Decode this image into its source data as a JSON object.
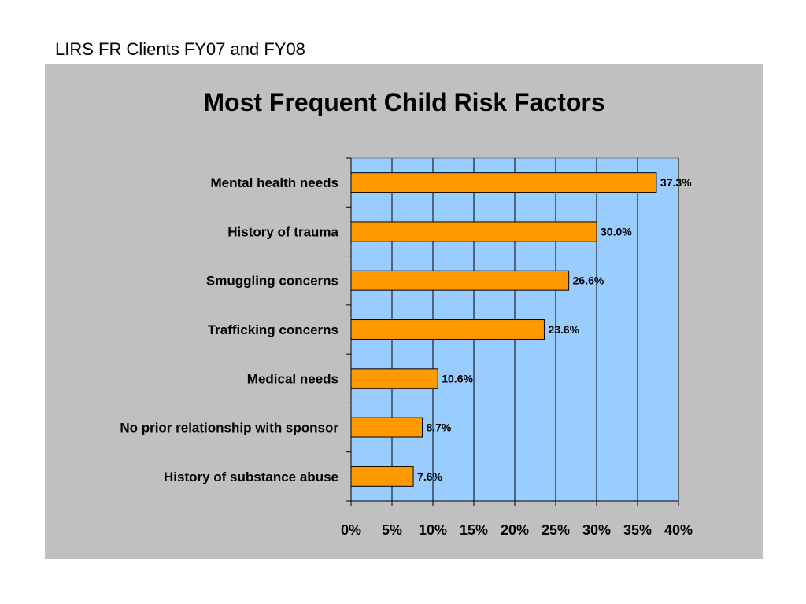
{
  "slide": {
    "heading": "LIRS FR Clients FY07 and FY08"
  },
  "colors": {
    "panel_background": "#c0c0c0",
    "plot_background": "#99ccff",
    "bar_fill": "#ff9900",
    "bar_stroke": "#000000",
    "gridline": "#000000"
  },
  "chart_data": {
    "type": "bar",
    "orientation": "horizontal",
    "title": "Most Frequent Child Risk Factors",
    "xlabel": "",
    "ylabel": "",
    "categories": [
      "Mental health needs",
      "History of trauma",
      "Smuggling concerns",
      "Trafficking concerns",
      "Medical needs",
      "No prior relationship with sponsor",
      "History of substance abuse"
    ],
    "values": [
      37.3,
      30.0,
      26.6,
      23.6,
      10.6,
      8.7,
      7.6
    ],
    "value_labels": [
      "37.3%",
      "30.0%",
      "26.6%",
      "23.6%",
      "10.6%",
      "8.7%",
      "7.6%"
    ],
    "xlim": [
      0,
      40
    ],
    "x_ticks": [
      0,
      5,
      10,
      15,
      20,
      25,
      30,
      35,
      40
    ],
    "x_tick_labels": [
      "0%",
      "5%",
      "10%",
      "15%",
      "20%",
      "25%",
      "30%",
      "35%",
      "40%"
    ],
    "grid": true,
    "legend": "none"
  }
}
